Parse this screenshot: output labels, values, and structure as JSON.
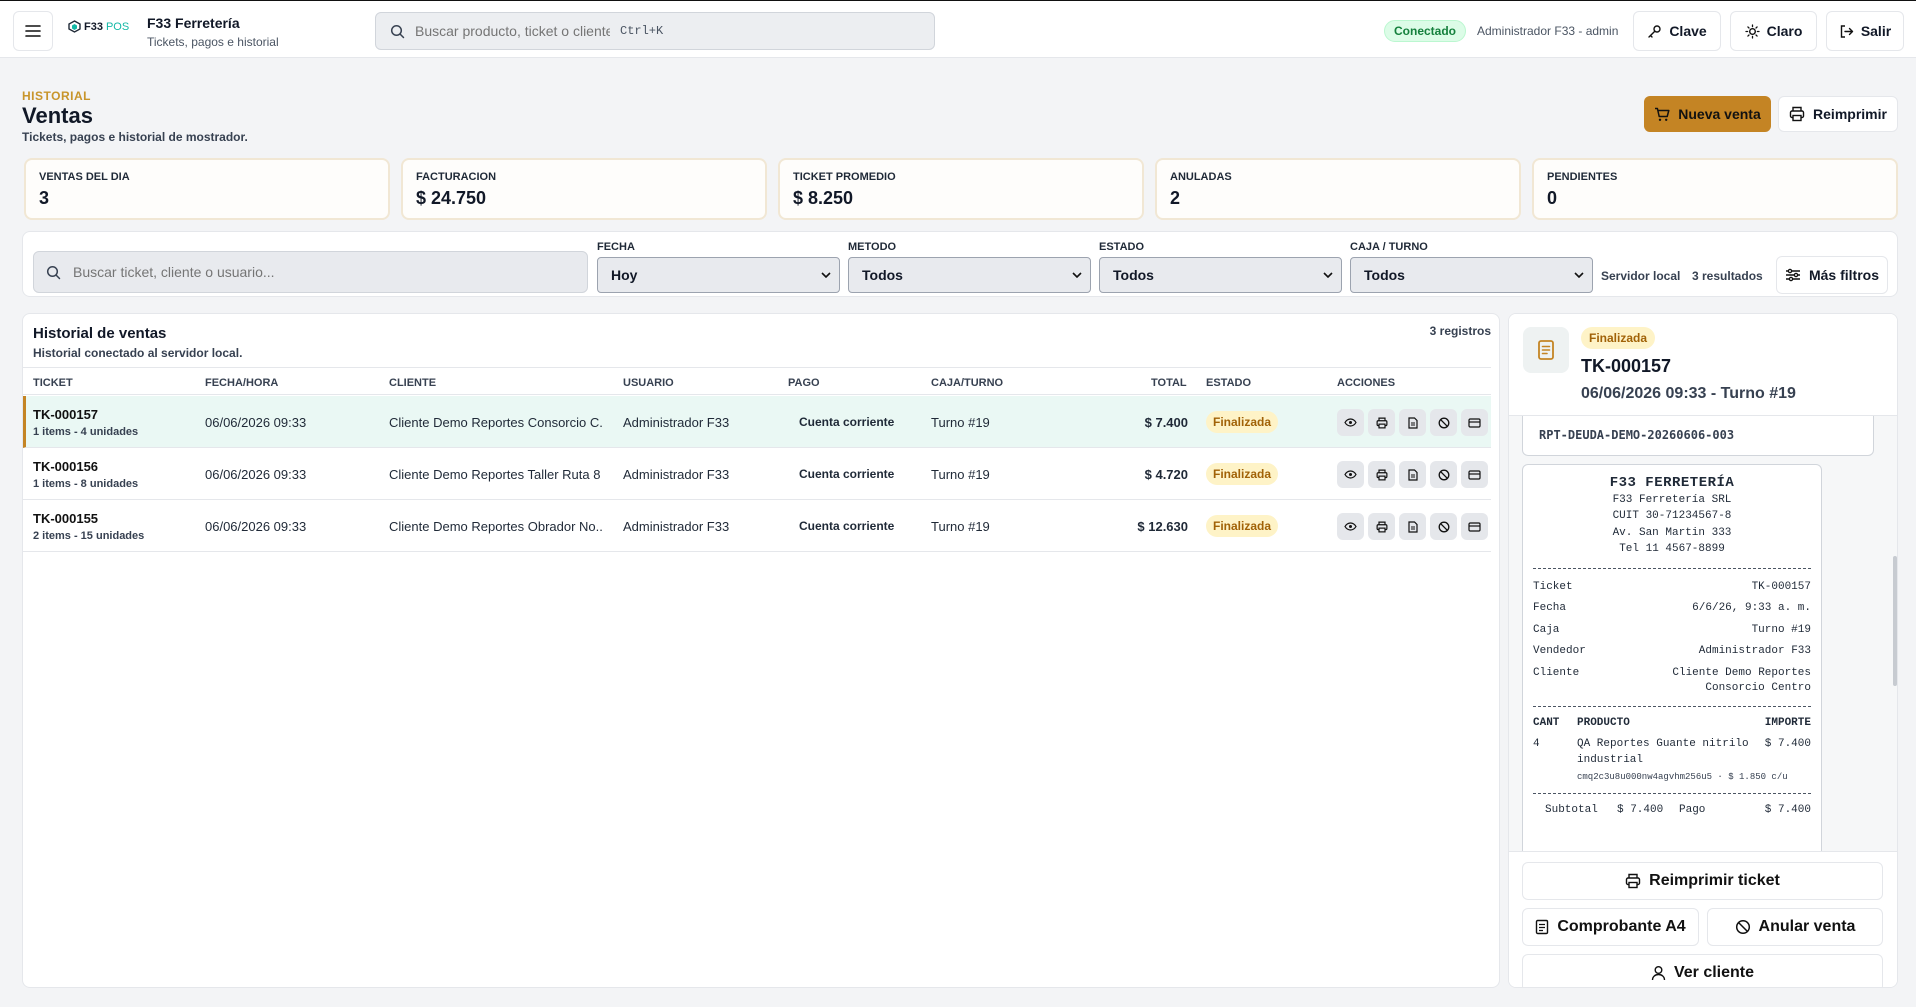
{
  "topbar": {
    "logo_text": "F33",
    "logo_pos": "POS",
    "app_title": "F33 Ferretería",
    "app_subtitle": "Tickets, pagos e historial",
    "search_placeholder": "Buscar producto, ticket o cliente",
    "search_shortcut": "Ctrl+K",
    "connection_status": "Conectado",
    "user": "Administrador F33 - admin",
    "buttons": {
      "clave": "Clave",
      "theme": "Claro",
      "logout": "Salir"
    }
  },
  "header": {
    "eyebrow": "HISTORIAL",
    "title": "Ventas",
    "subtitle": "Tickets, pagos e historial de mostrador.",
    "new_sale": "Nueva venta",
    "reprint": "Reimprimir"
  },
  "kpis": [
    {
      "label": "VENTAS DEL DIA",
      "value": "3"
    },
    {
      "label": "FACTURACION",
      "value": "$ 24.750"
    },
    {
      "label": "TICKET PROMEDIO",
      "value": "$ 8.250"
    },
    {
      "label": "ANULADAS",
      "value": "2"
    },
    {
      "label": "PENDIENTES",
      "value": "0"
    }
  ],
  "filters": {
    "search_placeholder": "Buscar ticket, cliente o usuario...",
    "fecha_label": "FECHA",
    "fecha_value": "Hoy",
    "metodo_label": "METODO",
    "metodo_value": "Todos",
    "estado_label": "ESTADO",
    "estado_value": "Todos",
    "caja_label": "CAJA / TURNO",
    "caja_value": "Todos",
    "server": "Servidor local",
    "results": "3 resultados",
    "more": "Más filtros"
  },
  "history": {
    "title": "Historial de ventas",
    "subtitle": "Historial conectado al servidor local.",
    "count": "3 registros",
    "columns": [
      "TICKET",
      "FECHA/HORA",
      "CLIENTE",
      "USUARIO",
      "PAGO",
      "CAJA/TURNO",
      "TOTAL",
      "ESTADO",
      "ACCIONES"
    ],
    "rows": [
      {
        "ticket": "TK-000157",
        "items": "1 items - 4 unidades",
        "date": "06/06/2026 09:33",
        "client": "Cliente Demo Reportes Consorcio C...",
        "user": "Administrador F33",
        "payment": "Cuenta corriente",
        "shift": "Turno #19",
        "total": "$ 7.400",
        "status": "Finalizada"
      },
      {
        "ticket": "TK-000156",
        "items": "1 items - 8 unidades",
        "date": "06/06/2026 09:33",
        "client": "Cliente Demo Reportes Taller Ruta 8",
        "user": "Administrador F33",
        "payment": "Cuenta corriente",
        "shift": "Turno #19",
        "total": "$ 4.720",
        "status": "Finalizada"
      },
      {
        "ticket": "TK-000155",
        "items": "2 items - 15 unidades",
        "date": "06/06/2026 09:33",
        "client": "Cliente Demo Reportes Obrador No...",
        "user": "Administrador F33",
        "payment": "Cuenta corriente",
        "shift": "Turno #19",
        "total": "$ 12.630",
        "status": "Finalizada"
      }
    ]
  },
  "detail": {
    "status": "Finalizada",
    "ticket": "TK-000157",
    "datetime": "06/06/2026 09:33 - Turno #19",
    "prev_code": "RPT-DEUDA-DEMO-20260606-003",
    "receipt": {
      "brand": "F33 FERRETERÍA",
      "company": "F33 Ferretería SRL",
      "cuit": "CUIT 30-71234567-8",
      "address": "Av. San Martin 333",
      "phone": "Tel 11 4567-8899",
      "lines": [
        {
          "k": "Ticket",
          "v": "TK-000157"
        },
        {
          "k": "Fecha",
          "v": "6/6/26, 9:33 a. m."
        },
        {
          "k": "Caja",
          "v": "Turno #19"
        },
        {
          "k": "Vendedor",
          "v": "Administrador F33"
        },
        {
          "k": "Cliente",
          "v": "Cliente Demo Reportes Consorcio Centro"
        }
      ],
      "col_qty": "CANT",
      "col_product": "PRODUCTO",
      "col_amount": "IMPORTE",
      "item_qty": "4",
      "item_name": "QA Reportes Guante nitrilo industrial",
      "item_amount": "$ 7.400",
      "item_meta": "cmq2c3u8u000nw4agvhm256u5 · $ 1.850 c/u",
      "subtotal_label": "Subtotal",
      "subtotal": "$ 7.400",
      "pago_label": "Pago",
      "pago": "$ 7.400"
    },
    "buttons": {
      "reprint": "Reimprimir ticket",
      "a4": "Comprobante A4",
      "cancel": "Anular venta",
      "client": "Ver cliente"
    }
  },
  "colors": {
    "accent": "#c48424",
    "success": "#15803d",
    "warning_bg": "#fef3c7"
  }
}
